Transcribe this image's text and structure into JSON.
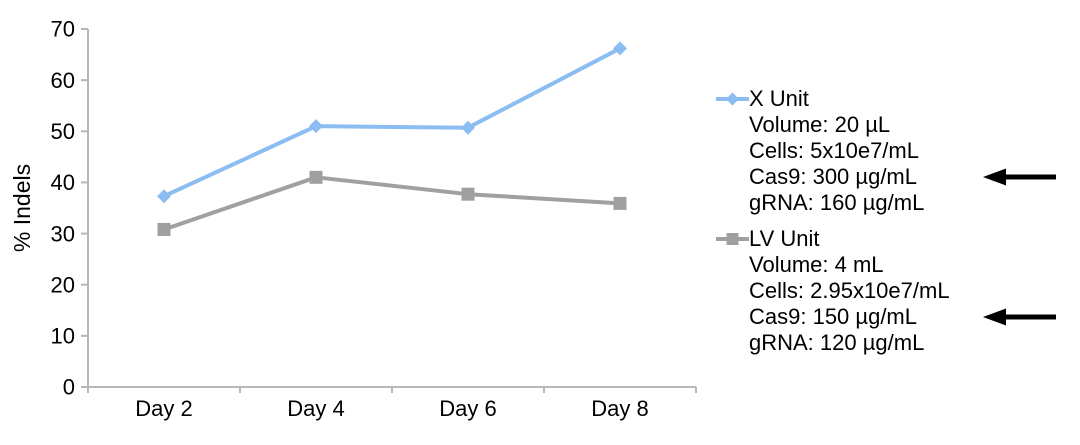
{
  "chart_data": {
    "type": "line",
    "title": "",
    "categories": [
      "Day 2",
      "Day 4",
      "Day 6",
      "Day 8"
    ],
    "series": [
      {
        "name": "X Unit",
        "marker": "diamond",
        "color": "#8cbdf2",
        "values": [
          37.3,
          51.0,
          50.7,
          66.2
        ]
      },
      {
        "name": "LV Unit",
        "marker": "square",
        "color": "#a0a0a0",
        "values": [
          30.8,
          41.0,
          37.7,
          35.9
        ]
      }
    ],
    "xlabel": "",
    "ylabel": "% Indels",
    "ylim": [
      0,
      70
    ],
    "yticks": [
      0,
      10,
      20,
      30,
      40,
      50,
      60,
      70
    ],
    "grid": false,
    "legend_position": "right",
    "axis_color": "#b7b7b7",
    "text_color": "#000000"
  },
  "legend": {
    "entries": [
      {
        "label": "X Unit",
        "marker": "diamond",
        "color": "#8cbdf2",
        "details": [
          "Volume: 20 µL",
          "Cells: 5x10e7/mL",
          "Cas9: 300 µg/mL",
          "gRNA: 160 µg/mL"
        ]
      },
      {
        "label": "LV Unit",
        "marker": "square",
        "color": "#a0a0a0",
        "details": [
          "Volume: 4 mL",
          "Cells: 2.95x10e7/mL",
          "Cas9: 150 µg/mL",
          "gRNA: 120 µg/mL"
        ]
      }
    ]
  },
  "annotations": {
    "arrows": [
      {
        "points_to": "Cas9: 300 µg/mL",
        "direction": "left",
        "color": "#000000"
      },
      {
        "points_to": "Cas9: 150 µg/mL",
        "direction": "left",
        "color": "#000000"
      }
    ]
  }
}
